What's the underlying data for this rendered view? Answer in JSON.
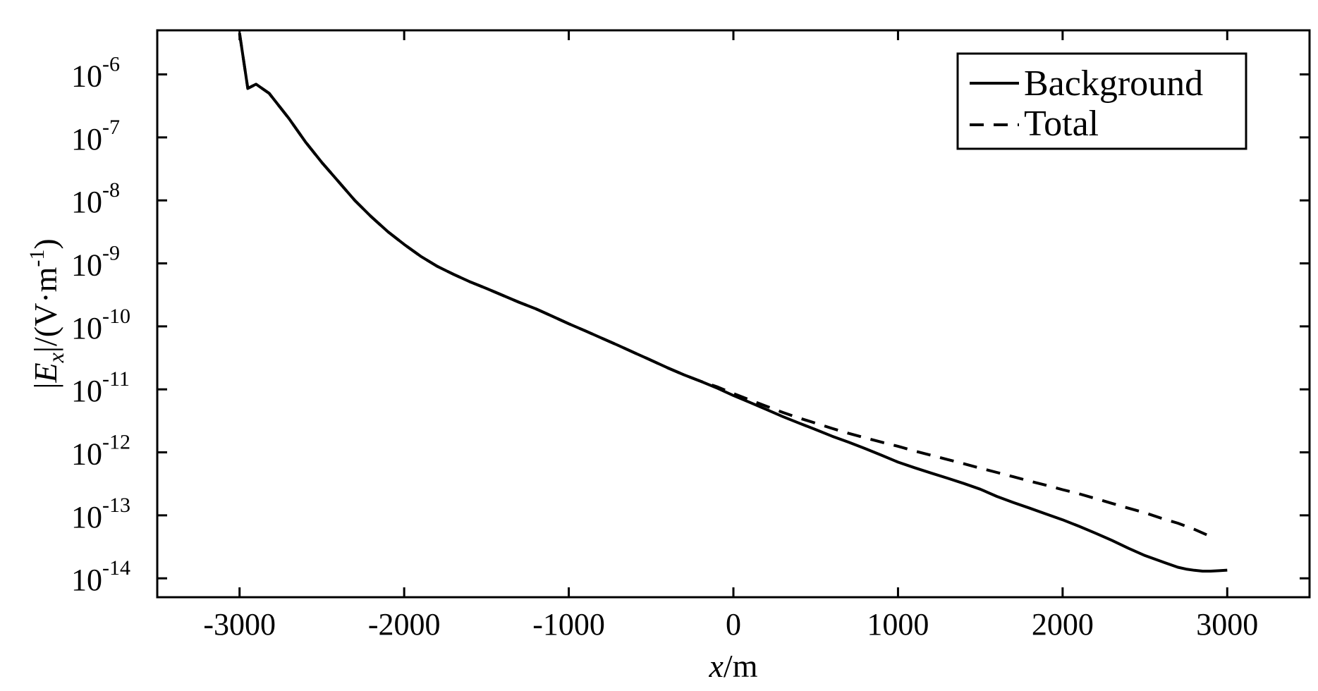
{
  "chart_data": {
    "type": "line",
    "title": "",
    "xlabel": {
      "var": "x",
      "unit": "/m"
    },
    "ylabel": {
      "open": "|",
      "var": "E",
      "sub": "x",
      "close": "|/(V·m",
      "sup": "-1",
      "end": ")"
    },
    "xlim": [
      -3500,
      3500
    ],
    "ylim_exp": [
      -14.3,
      -5.3
    ],
    "yscale": "log",
    "grid": false,
    "legend_position": "top-right",
    "x_ticks": [
      -3000,
      -2000,
      -1000,
      0,
      1000,
      2000,
      3000
    ],
    "x_tick_labels": [
      "-3000",
      "-2000",
      "-1000",
      "0",
      "1000",
      "2000",
      "3000"
    ],
    "y_ticks_exp": [
      -6,
      -7,
      -8,
      -9,
      -10,
      -11,
      -12,
      -13,
      -14
    ],
    "y_tick_base": "10",
    "y_tick_exps": [
      "-6",
      "-7",
      "-8",
      "-9",
      "-10",
      "-11",
      "-12",
      "-13",
      "-14"
    ],
    "series": [
      {
        "name": "Background",
        "style": "solid",
        "color": "#000000",
        "x": [
          -3000,
          -2950,
          -2900,
          -2820,
          -2700,
          -2600,
          -2500,
          -2400,
          -2300,
          -2200,
          -2100,
          -2000,
          -1900,
          -1800,
          -1700,
          -1600,
          -1500,
          -1400,
          -1300,
          -1200,
          -1100,
          -1000,
          -900,
          -800,
          -700,
          -600,
          -500,
          -400,
          -300,
          -200,
          -100,
          0,
          100,
          200,
          300,
          400,
          500,
          600,
          700,
          800,
          900,
          1000,
          1100,
          1200,
          1300,
          1400,
          1500,
          1600,
          1700,
          1800,
          1900,
          2000,
          2100,
          2200,
          2300,
          2400,
          2500,
          2600,
          2700,
          2750,
          2800,
          2850,
          2900,
          2950,
          3000
        ],
        "y": [
          4.5e-06,
          6e-07,
          7e-07,
          5e-07,
          2e-07,
          8.5e-08,
          4e-08,
          2e-08,
          1e-08,
          5.5e-09,
          3.2e-09,
          2e-09,
          1.3e-09,
          9e-10,
          6.7e-10,
          5.1e-10,
          4e-10,
          3.1e-10,
          2.4e-10,
          1.9e-10,
          1.45e-10,
          1.1e-10,
          8.5e-11,
          6.5e-11,
          5e-11,
          3.8e-11,
          2.9e-11,
          2.2e-11,
          1.7e-11,
          1.35e-11,
          1.05e-11,
          8e-12,
          6.2e-12,
          4.8e-12,
          3.7e-12,
          2.9e-12,
          2.3e-12,
          1.8e-12,
          1.45e-12,
          1.15e-12,
          9e-13,
          7e-13,
          5.7e-13,
          4.7e-13,
          3.9e-13,
          3.2e-13,
          2.6e-13,
          2e-13,
          1.6e-13,
          1.3e-13,
          1.05e-13,
          8.5e-14,
          6.7e-14,
          5.2e-14,
          4e-14,
          3e-14,
          2.3e-14,
          1.85e-14,
          1.5e-14,
          1.4e-14,
          1.34e-14,
          1.3e-14,
          1.3e-14,
          1.32e-14,
          1.35e-14
        ]
      },
      {
        "name": "Total",
        "style": "dashed",
        "color": "#000000",
        "x": [
          -3000,
          -2950,
          -2900,
          -2820,
          -2700,
          -2600,
          -2500,
          -2400,
          -2300,
          -2200,
          -2100,
          -2000,
          -1900,
          -1800,
          -1700,
          -1600,
          -1500,
          -1400,
          -1300,
          -1200,
          -1100,
          -1000,
          -900,
          -800,
          -700,
          -600,
          -500,
          -400,
          -300,
          -200,
          -100,
          0,
          100,
          200,
          300,
          400,
          500,
          600,
          700,
          800,
          900,
          1000,
          1100,
          1200,
          1300,
          1400,
          1500,
          1600,
          1700,
          1800,
          1900,
          2000,
          2100,
          2200,
          2300,
          2400,
          2500,
          2600,
          2700,
          2800,
          2900
        ],
        "y": [
          4.5e-06,
          6e-07,
          7e-07,
          5e-07,
          2e-07,
          8.5e-08,
          4e-08,
          2e-08,
          1e-08,
          5.5e-09,
          3.2e-09,
          2e-09,
          1.3e-09,
          9e-10,
          6.7e-10,
          5.1e-10,
          4e-10,
          3.1e-10,
          2.4e-10,
          1.9e-10,
          1.45e-10,
          1.1e-10,
          8.5e-11,
          6.5e-11,
          5e-11,
          3.8e-11,
          2.9e-11,
          2.2e-11,
          1.7e-11,
          1.35e-11,
          1.1e-11,
          8.6e-12,
          6.8e-12,
          5.4e-12,
          4.3e-12,
          3.5e-12,
          2.9e-12,
          2.4e-12,
          2e-12,
          1.7e-12,
          1.45e-12,
          1.25e-12,
          1.05e-12,
          9e-13,
          7.7e-13,
          6.6e-13,
          5.6e-13,
          4.8e-13,
          4.1e-13,
          3.5e-13,
          3e-13,
          2.55e-13,
          2.2e-13,
          1.85e-13,
          1.55e-13,
          1.3e-13,
          1.1e-13,
          9e-14,
          7.5e-14,
          6e-14,
          4.6e-14
        ]
      }
    ]
  }
}
